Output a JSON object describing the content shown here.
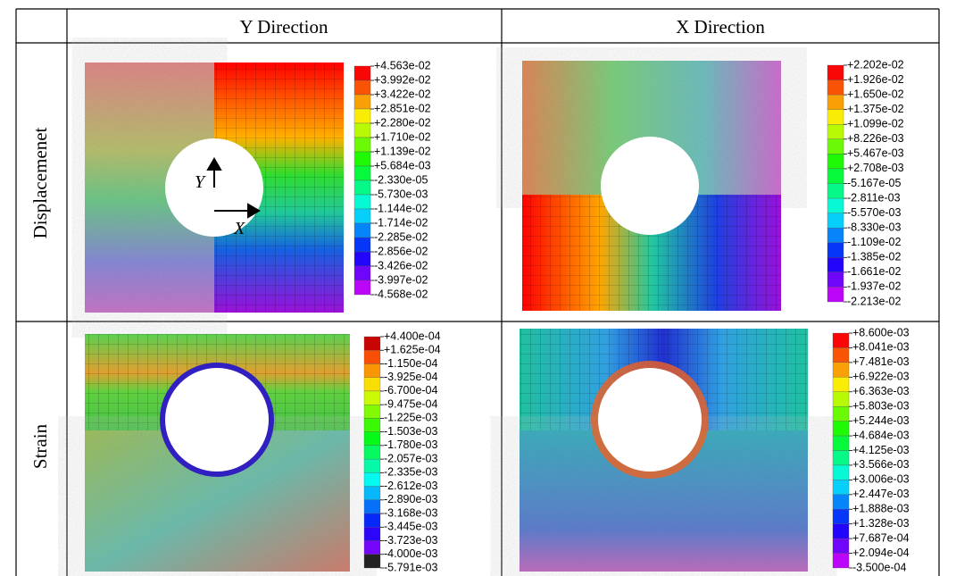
{
  "table": {
    "header": [
      "Y Direction",
      "X Direction"
    ],
    "rows": [
      {
        "label": "Displacemenet",
        "plots": [
          {
            "legend": [
              "+4.563e-02",
              "+3.992e-02",
              "+3.422e-02",
              "+2.851e-02",
              "+2.280e-02",
              "+1.710e-02",
              "+1.139e-02",
              "+5.684e-03",
              "-2.330e-05",
              "-5.730e-03",
              "-1.144e-02",
              "-1.714e-02",
              "-2.285e-02",
              "-2.856e-02",
              "-3.426e-02",
              "-3.997e-02",
              "-4.568e-02"
            ],
            "annotations": [
              "Y",
              "X"
            ]
          },
          {
            "legend": [
              "+2.202e-02",
              "+1.926e-02",
              "+1.650e-02",
              "+1.375e-02",
              "+1.099e-02",
              "+8.226e-03",
              "+5.467e-03",
              "+2.708e-03",
              "-5.167e-05",
              "-2.811e-03",
              "-5.570e-03",
              "-8.330e-03",
              "-1.109e-02",
              "-1.385e-02",
              "-1.661e-02",
              "-1.937e-02",
              "-2.213e-02"
            ]
          }
        ]
      },
      {
        "label": "Strain",
        "plots": [
          {
            "legend": [
              "+4.400e-04",
              "+1.625e-04",
              "-1.150e-04",
              "-3.925e-04",
              "-6.700e-04",
              "-9.475e-04",
              "-1.225e-03",
              "-1.503e-03",
              "-1.780e-03",
              "-2.057e-03",
              "-2.335e-03",
              "-2.612e-03",
              "-2.890e-03",
              "-3.168e-03",
              "-3.445e-03",
              "-3.723e-03",
              "-4.000e-03",
              "-5.791e-03"
            ]
          },
          {
            "legend": [
              "+8.600e-03",
              "+8.041e-03",
              "+7.481e-03",
              "+6.922e-03",
              "+6.363e-03",
              "+5.803e-03",
              "+5.244e-03",
              "+4.684e-03",
              "+4.125e-03",
              "+3.566e-03",
              "+3.006e-03",
              "+2.447e-03",
              "+1.888e-03",
              "+1.328e-03",
              "+7.687e-04",
              "+2.094e-04",
              "-3.500e-04"
            ]
          }
        ]
      }
    ]
  }
}
